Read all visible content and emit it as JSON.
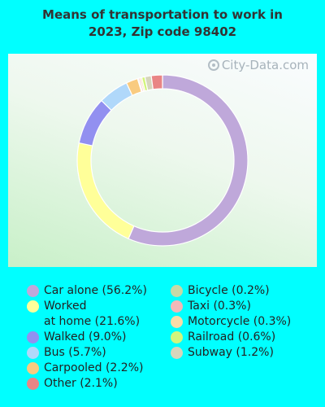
{
  "chart_data": {
    "type": "pie",
    "style": "donut",
    "title_lines": [
      "Means of transportation to work in",
      "2023, Zip code 98402"
    ],
    "watermark": "City-Data.com",
    "slices": [
      {
        "label": "Car alone (56.2%)",
        "value": 56.2,
        "color": "#BFA8DA"
      },
      {
        "label": "Worked\nat home (21.6%)",
        "value": 21.6,
        "color": "#FFFF99"
      },
      {
        "label": "Walked (9.0%)",
        "value": 9.0,
        "color": "#9290F0"
      },
      {
        "label": "Bus (5.7%)",
        "value": 5.7,
        "color": "#B0D8FA"
      },
      {
        "label": "Carpooled (2.2%)",
        "value": 2.2,
        "color": "#F9CB80"
      },
      {
        "label": "Bicycle (0.2%)",
        "value": 0.2,
        "color": "#C7D9A6"
      },
      {
        "label": "Taxi (0.3%)",
        "value": 0.3,
        "color": "#F2B8B8"
      },
      {
        "label": "Motorcycle (0.3%)",
        "value": 0.3,
        "color": "#FADCA8"
      },
      {
        "label": "Railroad (0.6%)",
        "value": 0.6,
        "color": "#D2F57C"
      },
      {
        "label": "Subway (1.2%)",
        "value": 1.2,
        "color": "#D6D6BC"
      },
      {
        "label": "Other (2.1%)",
        "value": 2.1,
        "color": "#E98585"
      }
    ],
    "legend_columns": [
      [
        0,
        1,
        2,
        3,
        4,
        10
      ],
      [
        5,
        6,
        7,
        8,
        9
      ]
    ]
  }
}
